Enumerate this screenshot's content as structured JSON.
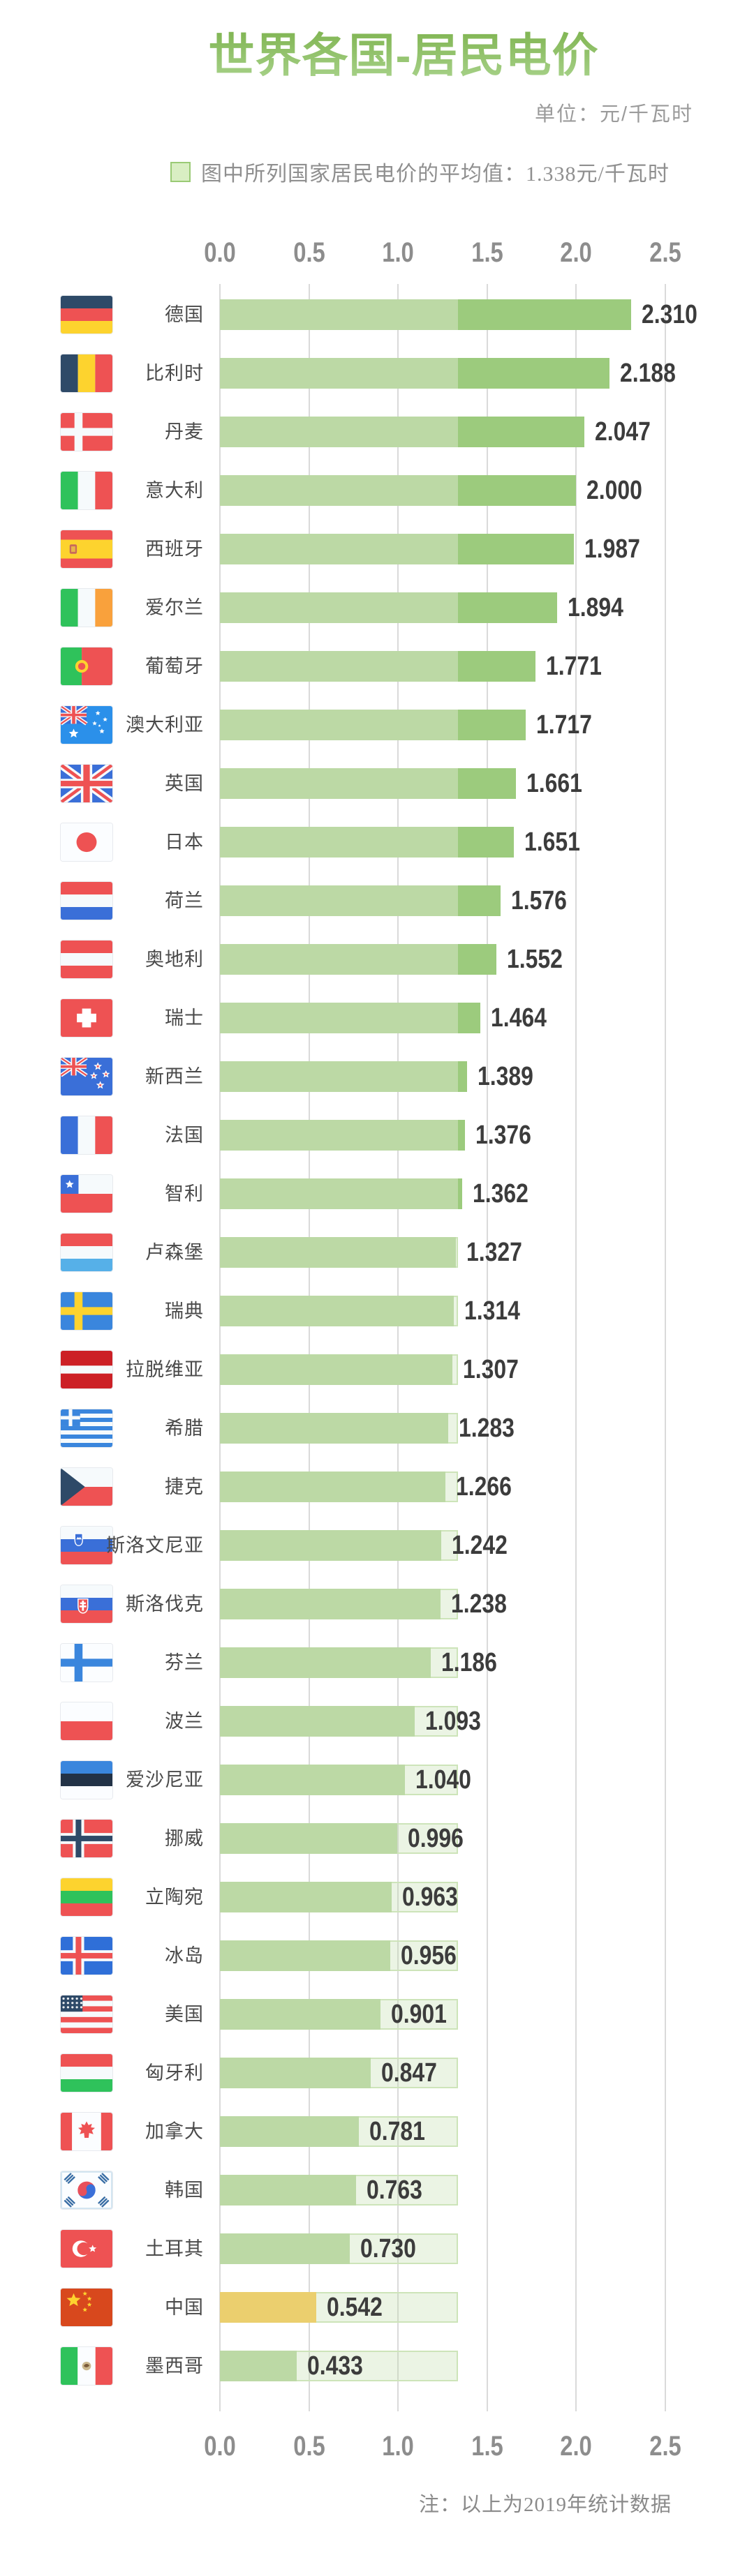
{
  "header": {
    "title": "世界各国-居民电价",
    "unit": "单位：元/千瓦时",
    "legend_text": "图中所列国家居民电价的平均值：1.338元/千瓦时"
  },
  "footer": {
    "note": "注：以上为2019年统计数据"
  },
  "chart_data": {
    "type": "bar",
    "orientation": "horizontal",
    "title": "世界各国-居民电价",
    "unit": "元/千瓦时",
    "average": 1.338,
    "average_label": "1.338元/千瓦时",
    "xlim": [
      0,
      2.5
    ],
    "x_ticks": [
      "0.0",
      "0.5",
      "1.0",
      "1.5",
      "2.0",
      "2.5"
    ],
    "grid": true,
    "highlight_category": "中国",
    "categories": [
      "德国",
      "比利时",
      "丹麦",
      "意大利",
      "西班牙",
      "爱尔兰",
      "葡萄牙",
      "澳大利亚",
      "英国",
      "日本",
      "荷兰",
      "奥地利",
      "瑞士",
      "新西兰",
      "法国",
      "智利",
      "卢森堡",
      "瑞典",
      "拉脱维亚",
      "希腊",
      "捷克",
      "斯洛文尼亚",
      "斯洛伐克",
      "芬兰",
      "波兰",
      "爱沙尼亚",
      "挪威",
      "立陶宛",
      "冰岛",
      "美国",
      "匈牙利",
      "加拿大",
      "韩国",
      "土耳其",
      "中国",
      "墨西哥"
    ],
    "values": [
      2.31,
      2.188,
      2.047,
      2.0,
      1.987,
      1.894,
      1.771,
      1.717,
      1.661,
      1.651,
      1.576,
      1.552,
      1.464,
      1.389,
      1.376,
      1.362,
      1.327,
      1.314,
      1.307,
      1.283,
      1.266,
      1.242,
      1.238,
      1.186,
      1.093,
      1.04,
      0.996,
      0.963,
      0.956,
      0.901,
      0.847,
      0.781,
      0.763,
      0.73,
      0.542,
      0.433
    ],
    "value_labels": [
      "2.310",
      "2.188",
      "2.047",
      "2.000",
      "1.987",
      "1.894",
      "1.771",
      "1.717",
      "1.661",
      "1.651",
      "1.576",
      "1.552",
      "1.464",
      "1.389",
      "1.376",
      "1.362",
      "1.327",
      "1.314",
      "1.307",
      "1.283",
      "1.266",
      "1.242",
      "1.238",
      "1.186",
      "1.093",
      "1.040",
      "0.996",
      "0.963",
      "0.956",
      "0.901",
      "0.847",
      "0.781",
      "0.763",
      "0.730",
      "0.542",
      "0.433"
    ],
    "flag_icons": [
      "germany-flag-icon",
      "belgium-flag-icon",
      "denmark-flag-icon",
      "italy-flag-icon",
      "spain-flag-icon",
      "ireland-flag-icon",
      "portugal-flag-icon",
      "australia-flag-icon",
      "uk-flag-icon",
      "japan-flag-icon",
      "netherlands-flag-icon",
      "austria-flag-icon",
      "switzerland-flag-icon",
      "newzealand-flag-icon",
      "france-flag-icon",
      "chile-flag-icon",
      "luxembourg-flag-icon",
      "sweden-flag-icon",
      "latvia-flag-icon",
      "greece-flag-icon",
      "czech-flag-icon",
      "slovenia-flag-icon",
      "slovakia-flag-icon",
      "finland-flag-icon",
      "poland-flag-icon",
      "estonia-flag-icon",
      "norway-flag-icon",
      "lithuania-flag-icon",
      "iceland-flag-icon",
      "usa-flag-icon",
      "hungary-flag-icon",
      "canada-flag-icon",
      "southkorea-flag-icon",
      "turkey-flag-icon",
      "china-flag-icon",
      "mexico-flag-icon"
    ],
    "colors": {
      "bar": "#bcd9a5",
      "above_average_segment": "#9ccb7d",
      "average_remainder_fill": "#eef5e7",
      "average_remainder_border": "#cde4b9",
      "highlight_bar": "#ebcf6e",
      "gridline": "#dadada",
      "value_text": "#3c3c3c",
      "category_text": "#4a4a4a",
      "axis_text": "#8d8d8d",
      "title_gradient_top": "#7bb14b",
      "title_gradient_bottom": "#a9d38c",
      "legend_swatch_fill": "#d9eec3",
      "legend_swatch_border": "#9aca75"
    }
  }
}
